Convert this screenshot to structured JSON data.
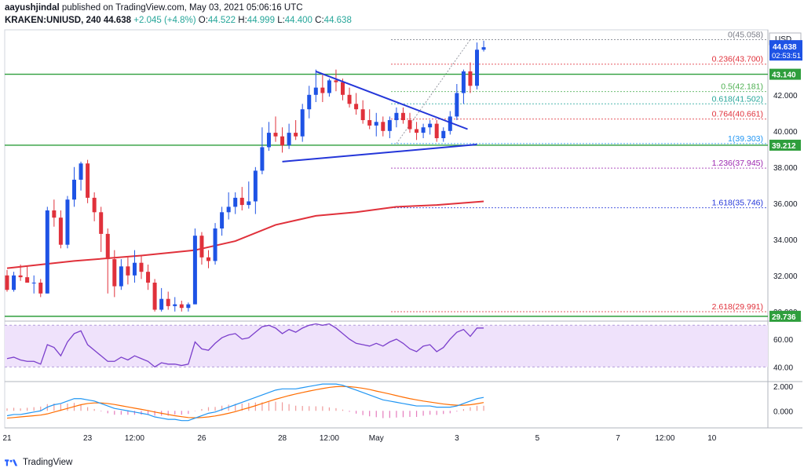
{
  "header": {
    "author": "aayushjindal",
    "published_text": "published on TradingView.com, May 03, 2021 05:06:16 UTC",
    "symbol": "KRAKEN:UNIUSD, 240",
    "last": "44.638",
    "change": "+2.045 (+4.8%)",
    "o_label": "O:",
    "o_value": "44.522",
    "h_label": "H:",
    "h_value": "44.999",
    "l_label": "L:",
    "l_value": "44.400",
    "c_label": "C:",
    "c_value": "44.638"
  },
  "footer": {
    "brand": "TradingView"
  },
  "colors": {
    "up": "#1e53e5",
    "down": "#e0313b",
    "ma": "#e0313b",
    "hline": "#2e9e3c",
    "trend": "#2436d9",
    "rsi": "#7b3fcc",
    "rsi_fill": "#efe2fb",
    "macd": "#2196f3",
    "signal": "#ff6d00",
    "hist_pos": "#ef9a9a",
    "hist_neg": "#e57bbd"
  },
  "chart_data": {
    "type": "candlestick",
    "ylim": [
      29.6,
      45.6
    ],
    "currency_label": "USD",
    "y_ticks": [
      {
        "label": "42.000",
        "value": 42
      },
      {
        "label": "40.000",
        "value": 40
      },
      {
        "label": "38.000",
        "value": 38
      },
      {
        "label": "36.000",
        "value": 36
      },
      {
        "label": "34.000",
        "value": 34
      },
      {
        "label": "32.000",
        "value": 32
      },
      {
        "label": "30.000",
        "value": 30
      }
    ],
    "x_ticks": [
      {
        "label": "21",
        "i": 0
      },
      {
        "label": "23",
        "i": 12
      },
      {
        "label": "12:00",
        "i": 19
      },
      {
        "label": "26",
        "i": 29
      },
      {
        "label": "28",
        "i": 41
      },
      {
        "label": "12:00",
        "i": 48
      },
      {
        "label": "May",
        "i": 55
      },
      {
        "label": "3",
        "i": 67
      },
      {
        "label": "5",
        "i": 79
      },
      {
        "label": "7",
        "i": 91
      },
      {
        "label": "12:00",
        "i": 98
      },
      {
        "label": "10",
        "i": 105
      }
    ],
    "candles": [
      [
        32.0,
        32.3,
        31.1,
        31.2
      ],
      [
        31.2,
        32.2,
        31.1,
        32.0
      ],
      [
        32.0,
        32.6,
        31.7,
        31.9
      ],
      [
        31.9,
        32.5,
        31.6,
        31.6
      ],
      [
        31.6,
        32.0,
        31.0,
        31.6
      ],
      [
        31.6,
        31.8,
        30.8,
        31.0
      ],
      [
        31.0,
        35.8,
        31.0,
        35.6
      ],
      [
        35.6,
        36.2,
        34.7,
        35.2
      ],
      [
        35.2,
        35.6,
        33.5,
        33.7
      ],
      [
        33.7,
        36.4,
        33.5,
        36.2
      ],
      [
        36.2,
        38.0,
        35.8,
        37.3
      ],
      [
        37.3,
        38.3,
        36.7,
        38.2
      ],
      [
        38.2,
        38.4,
        36.0,
        36.3
      ],
      [
        36.3,
        36.6,
        35.0,
        35.5
      ],
      [
        35.5,
        35.8,
        33.3,
        34.3
      ],
      [
        34.3,
        34.6,
        31.0,
        32.9
      ],
      [
        32.9,
        33.4,
        30.8,
        31.4
      ],
      [
        31.4,
        32.9,
        31.2,
        32.5
      ],
      [
        32.5,
        33.0,
        31.5,
        32.0
      ],
      [
        32.0,
        33.4,
        31.6,
        32.7
      ],
      [
        32.7,
        33.1,
        31.8,
        32.2
      ],
      [
        32.2,
        32.6,
        31.2,
        31.6
      ],
      [
        31.6,
        31.8,
        30.0,
        30.1
      ],
      [
        30.1,
        31.3,
        30.0,
        30.7
      ],
      [
        30.7,
        31.1,
        30.1,
        30.3
      ],
      [
        30.3,
        30.8,
        30.0,
        30.4
      ],
      [
        30.4,
        30.6,
        30.0,
        30.2
      ],
      [
        30.2,
        30.5,
        30.0,
        30.4
      ],
      [
        30.4,
        34.6,
        30.4,
        34.2
      ],
      [
        34.2,
        34.4,
        32.6,
        33.0
      ],
      [
        33.0,
        33.4,
        32.4,
        32.8
      ],
      [
        32.8,
        34.9,
        32.6,
        34.6
      ],
      [
        34.6,
        35.8,
        34.2,
        35.5
      ],
      [
        35.5,
        36.6,
        35.1,
        35.8
      ],
      [
        35.8,
        36.6,
        35.4,
        36.3
      ],
      [
        36.3,
        36.9,
        35.6,
        35.9
      ],
      [
        35.9,
        37.2,
        35.7,
        36.1
      ],
      [
        36.1,
        38.0,
        35.4,
        37.8
      ],
      [
        37.8,
        40.2,
        37.6,
        39.1
      ],
      [
        39.1,
        40.5,
        38.9,
        39.9
      ],
      [
        39.9,
        40.8,
        39.4,
        39.7
      ],
      [
        39.7,
        40.2,
        38.8,
        39.2
      ],
      [
        39.2,
        40.4,
        39.0,
        39.9
      ],
      [
        39.9,
        40.6,
        39.5,
        39.7
      ],
      [
        39.7,
        41.5,
        39.4,
        41.2
      ],
      [
        41.2,
        42.5,
        40.7,
        42.0
      ],
      [
        42.0,
        43.4,
        41.6,
        42.4
      ],
      [
        42.4,
        43.1,
        41.6,
        42.1
      ],
      [
        42.1,
        42.9,
        41.9,
        42.8
      ],
      [
        42.8,
        43.4,
        42.2,
        42.7
      ],
      [
        42.7,
        42.9,
        41.7,
        42.0
      ],
      [
        42.0,
        42.4,
        41.3,
        41.5
      ],
      [
        41.5,
        42.1,
        40.9,
        41.2
      ],
      [
        41.2,
        41.7,
        40.4,
        40.6
      ],
      [
        40.6,
        41.2,
        40.1,
        40.3
      ],
      [
        40.3,
        41.0,
        39.7,
        40.5
      ],
      [
        40.5,
        40.8,
        39.7,
        40.0
      ],
      [
        40.0,
        40.8,
        39.6,
        40.6
      ],
      [
        40.6,
        41.3,
        40.2,
        41.0
      ],
      [
        41.0,
        41.3,
        40.4,
        40.6
      ],
      [
        40.6,
        41.0,
        39.9,
        40.1
      ],
      [
        40.1,
        40.5,
        39.5,
        39.9
      ],
      [
        39.9,
        40.4,
        39.6,
        40.2
      ],
      [
        40.2,
        40.6,
        39.8,
        40.4
      ],
      [
        40.4,
        40.6,
        39.4,
        39.6
      ],
      [
        39.6,
        40.2,
        39.4,
        40.0
      ],
      [
        40.0,
        41.1,
        39.8,
        40.8
      ],
      [
        40.8,
        42.6,
        40.6,
        42.1
      ],
      [
        42.1,
        43.4,
        41.5,
        43.3
      ],
      [
        43.3,
        43.8,
        42.1,
        42.5
      ],
      [
        42.5,
        44.9,
        42.3,
        44.5
      ],
      [
        44.5,
        44.999,
        44.4,
        44.638
      ]
    ],
    "ma": [
      [
        0,
        32.4
      ],
      [
        10,
        32.8
      ],
      [
        20,
        33.1
      ],
      [
        28,
        33.4
      ],
      [
        34,
        33.9
      ],
      [
        40,
        34.8
      ],
      [
        46,
        35.3
      ],
      [
        52,
        35.5
      ],
      [
        58,
        35.8
      ],
      [
        64,
        35.9
      ],
      [
        71,
        36.1
      ]
    ],
    "support_levels": [
      {
        "label": "43.140",
        "value": 43.14
      },
      {
        "label": "39.212",
        "value": 39.212
      },
      {
        "label": "29.736",
        "value": 29.736
      }
    ],
    "trendlines": [
      {
        "from": [
          41,
          38.3
        ],
        "to": [
          70,
          39.25
        ]
      },
      {
        "from": [
          46,
          43.3
        ],
        "to": [
          68.6,
          40.1
        ]
      }
    ],
    "fib_levels": [
      {
        "label": "0(45.058)",
        "value": 45.058,
        "color": "#787b86"
      },
      {
        "label": "0.236(43.700)",
        "value": 43.7,
        "color": "#e0313b"
      },
      {
        "label": "0.5(42.181)",
        "value": 42.181,
        "color": "#4caf50"
      },
      {
        "label": "0.618(41.502)",
        "value": 41.502,
        "color": "#26a69a"
      },
      {
        "label": "0.764(40.661)",
        "value": 40.661,
        "color": "#e0313b"
      },
      {
        "label": "1(39.303)",
        "value": 39.303,
        "color": "#2196f3"
      },
      {
        "label": "1.236(37.945)",
        "value": 37.945,
        "color": "#9c27b0"
      },
      {
        "label": "1.618(35.746)",
        "value": 35.746,
        "color": "#2436d9"
      },
      {
        "label": "2.618(29.991)",
        "value": 29.991,
        "color": "#e0313b"
      }
    ],
    "last_price_label": "44.638",
    "countdown_label": "02:53:51",
    "rsi": {
      "ylim": [
        30,
        73
      ],
      "ticks": [
        {
          "label": "60.00",
          "value": 60
        },
        {
          "label": "40.00",
          "value": 40
        }
      ],
      "band": [
        40,
        70
      ],
      "values": [
        46,
        47,
        45,
        44,
        44,
        42,
        56,
        54,
        48,
        58,
        64,
        66,
        56,
        52,
        48,
        44,
        44,
        47,
        45,
        48,
        46,
        44,
        40,
        43,
        42,
        42,
        41,
        42,
        58,
        53,
        52,
        57,
        61,
        63,
        64,
        60,
        61,
        65,
        69,
        70,
        68,
        64,
        67,
        65,
        68,
        70,
        71,
        70,
        71,
        68,
        64,
        60,
        57,
        56,
        55,
        57,
        55,
        58,
        60,
        57,
        53,
        51,
        55,
        56,
        51,
        54,
        60,
        65,
        67,
        62,
        68,
        68
      ]
    },
    "macd": {
      "ylim": [
        -1.4,
        2.4
      ],
      "ticks": [
        {
          "label": "2.000",
          "value": 2
        },
        {
          "label": "0.000",
          "value": 0
        }
      ],
      "macd": [
        -0.4,
        -0.3,
        -0.3,
        -0.2,
        -0.1,
        0.0,
        0.3,
        0.5,
        0.6,
        0.8,
        1.0,
        1.0,
        0.9,
        0.8,
        0.6,
        0.4,
        0.2,
        0.1,
        0.0,
        -0.1,
        -0.2,
        -0.3,
        -0.5,
        -0.6,
        -0.7,
        -0.7,
        -0.8,
        -0.8,
        -0.6,
        -0.4,
        -0.2,
        -0.1,
        0.1,
        0.3,
        0.5,
        0.7,
        0.9,
        1.1,
        1.3,
        1.5,
        1.7,
        1.8,
        1.8,
        1.8,
        1.9,
        2.0,
        2.1,
        2.2,
        2.2,
        2.2,
        2.1,
        1.9,
        1.7,
        1.5,
        1.3,
        1.1,
        0.9,
        0.8,
        0.7,
        0.6,
        0.5,
        0.4,
        0.4,
        0.4,
        0.3,
        0.3,
        0.3,
        0.4,
        0.6,
        0.8,
        1.0,
        1.1
      ],
      "signal": [
        -0.6,
        -0.55,
        -0.5,
        -0.45,
        -0.4,
        -0.35,
        -0.25,
        -0.1,
        0.05,
        0.2,
        0.35,
        0.5,
        0.6,
        0.65,
        0.65,
        0.6,
        0.52,
        0.42,
        0.32,
        0.22,
        0.12,
        0.02,
        -0.1,
        -0.2,
        -0.3,
        -0.4,
        -0.48,
        -0.55,
        -0.57,
        -0.55,
        -0.5,
        -0.42,
        -0.32,
        -0.2,
        -0.07,
        0.1,
        0.25,
        0.42,
        0.6,
        0.78,
        0.95,
        1.1,
        1.25,
        1.38,
        1.5,
        1.62,
        1.73,
        1.83,
        1.92,
        1.98,
        2.0,
        1.98,
        1.93,
        1.85,
        1.75,
        1.62,
        1.5,
        1.38,
        1.25,
        1.12,
        1.0,
        0.9,
        0.8,
        0.72,
        0.64,
        0.56,
        0.5,
        0.46,
        0.46,
        0.5,
        0.58,
        0.68
      ]
    }
  }
}
